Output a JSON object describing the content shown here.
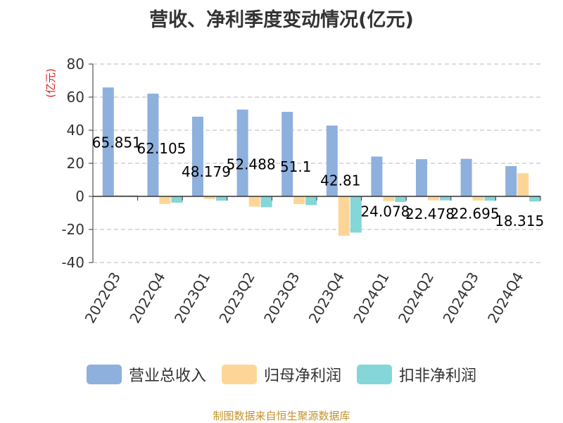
{
  "chart_data": {
    "type": "bar",
    "title": "营收、净利季度变动情况(亿元)",
    "ylabel": "(亿元)",
    "xlabel": "",
    "ylim": [
      -40,
      80
    ],
    "yticks": [
      80,
      60,
      40,
      20,
      0,
      -20,
      -40
    ],
    "grid": true,
    "legend_position": "bottom",
    "categories": [
      "2022Q3",
      "2022Q4",
      "2023Q1",
      "2023Q2",
      "2023Q3",
      "2023Q4",
      "2024Q1",
      "2024Q2",
      "2024Q3",
      "2024Q4"
    ],
    "series": [
      {
        "name": "营业总收入",
        "color": "#8eb0dd",
        "values": [
          65.851,
          62.105,
          48.179,
          52.488,
          51.1,
          42.81,
          24.078,
          22.478,
          22.695,
          18.315
        ]
      },
      {
        "name": "归母净利润",
        "color": "#fdd697",
        "values": [
          0.8,
          -4.6,
          -1.6,
          -6.2,
          -4.7,
          -23.8,
          -2.8,
          -2.4,
          -2.5,
          14.0
        ]
      },
      {
        "name": "扣非净利润",
        "color": "#85d6d8",
        "values": [
          0.6,
          -3.8,
          -2.6,
          -6.6,
          -5.3,
          -21.9,
          -3.4,
          -2.4,
          -2.6,
          -3.1
        ]
      }
    ],
    "data_labels": [
      "65.851",
      "62.105",
      "48.179",
      "52.488",
      "51.1",
      "42.81",
      "24.078",
      "22.478",
      "22.695",
      "18.315"
    ]
  },
  "source": "制图数据来自恒生聚源数据库"
}
